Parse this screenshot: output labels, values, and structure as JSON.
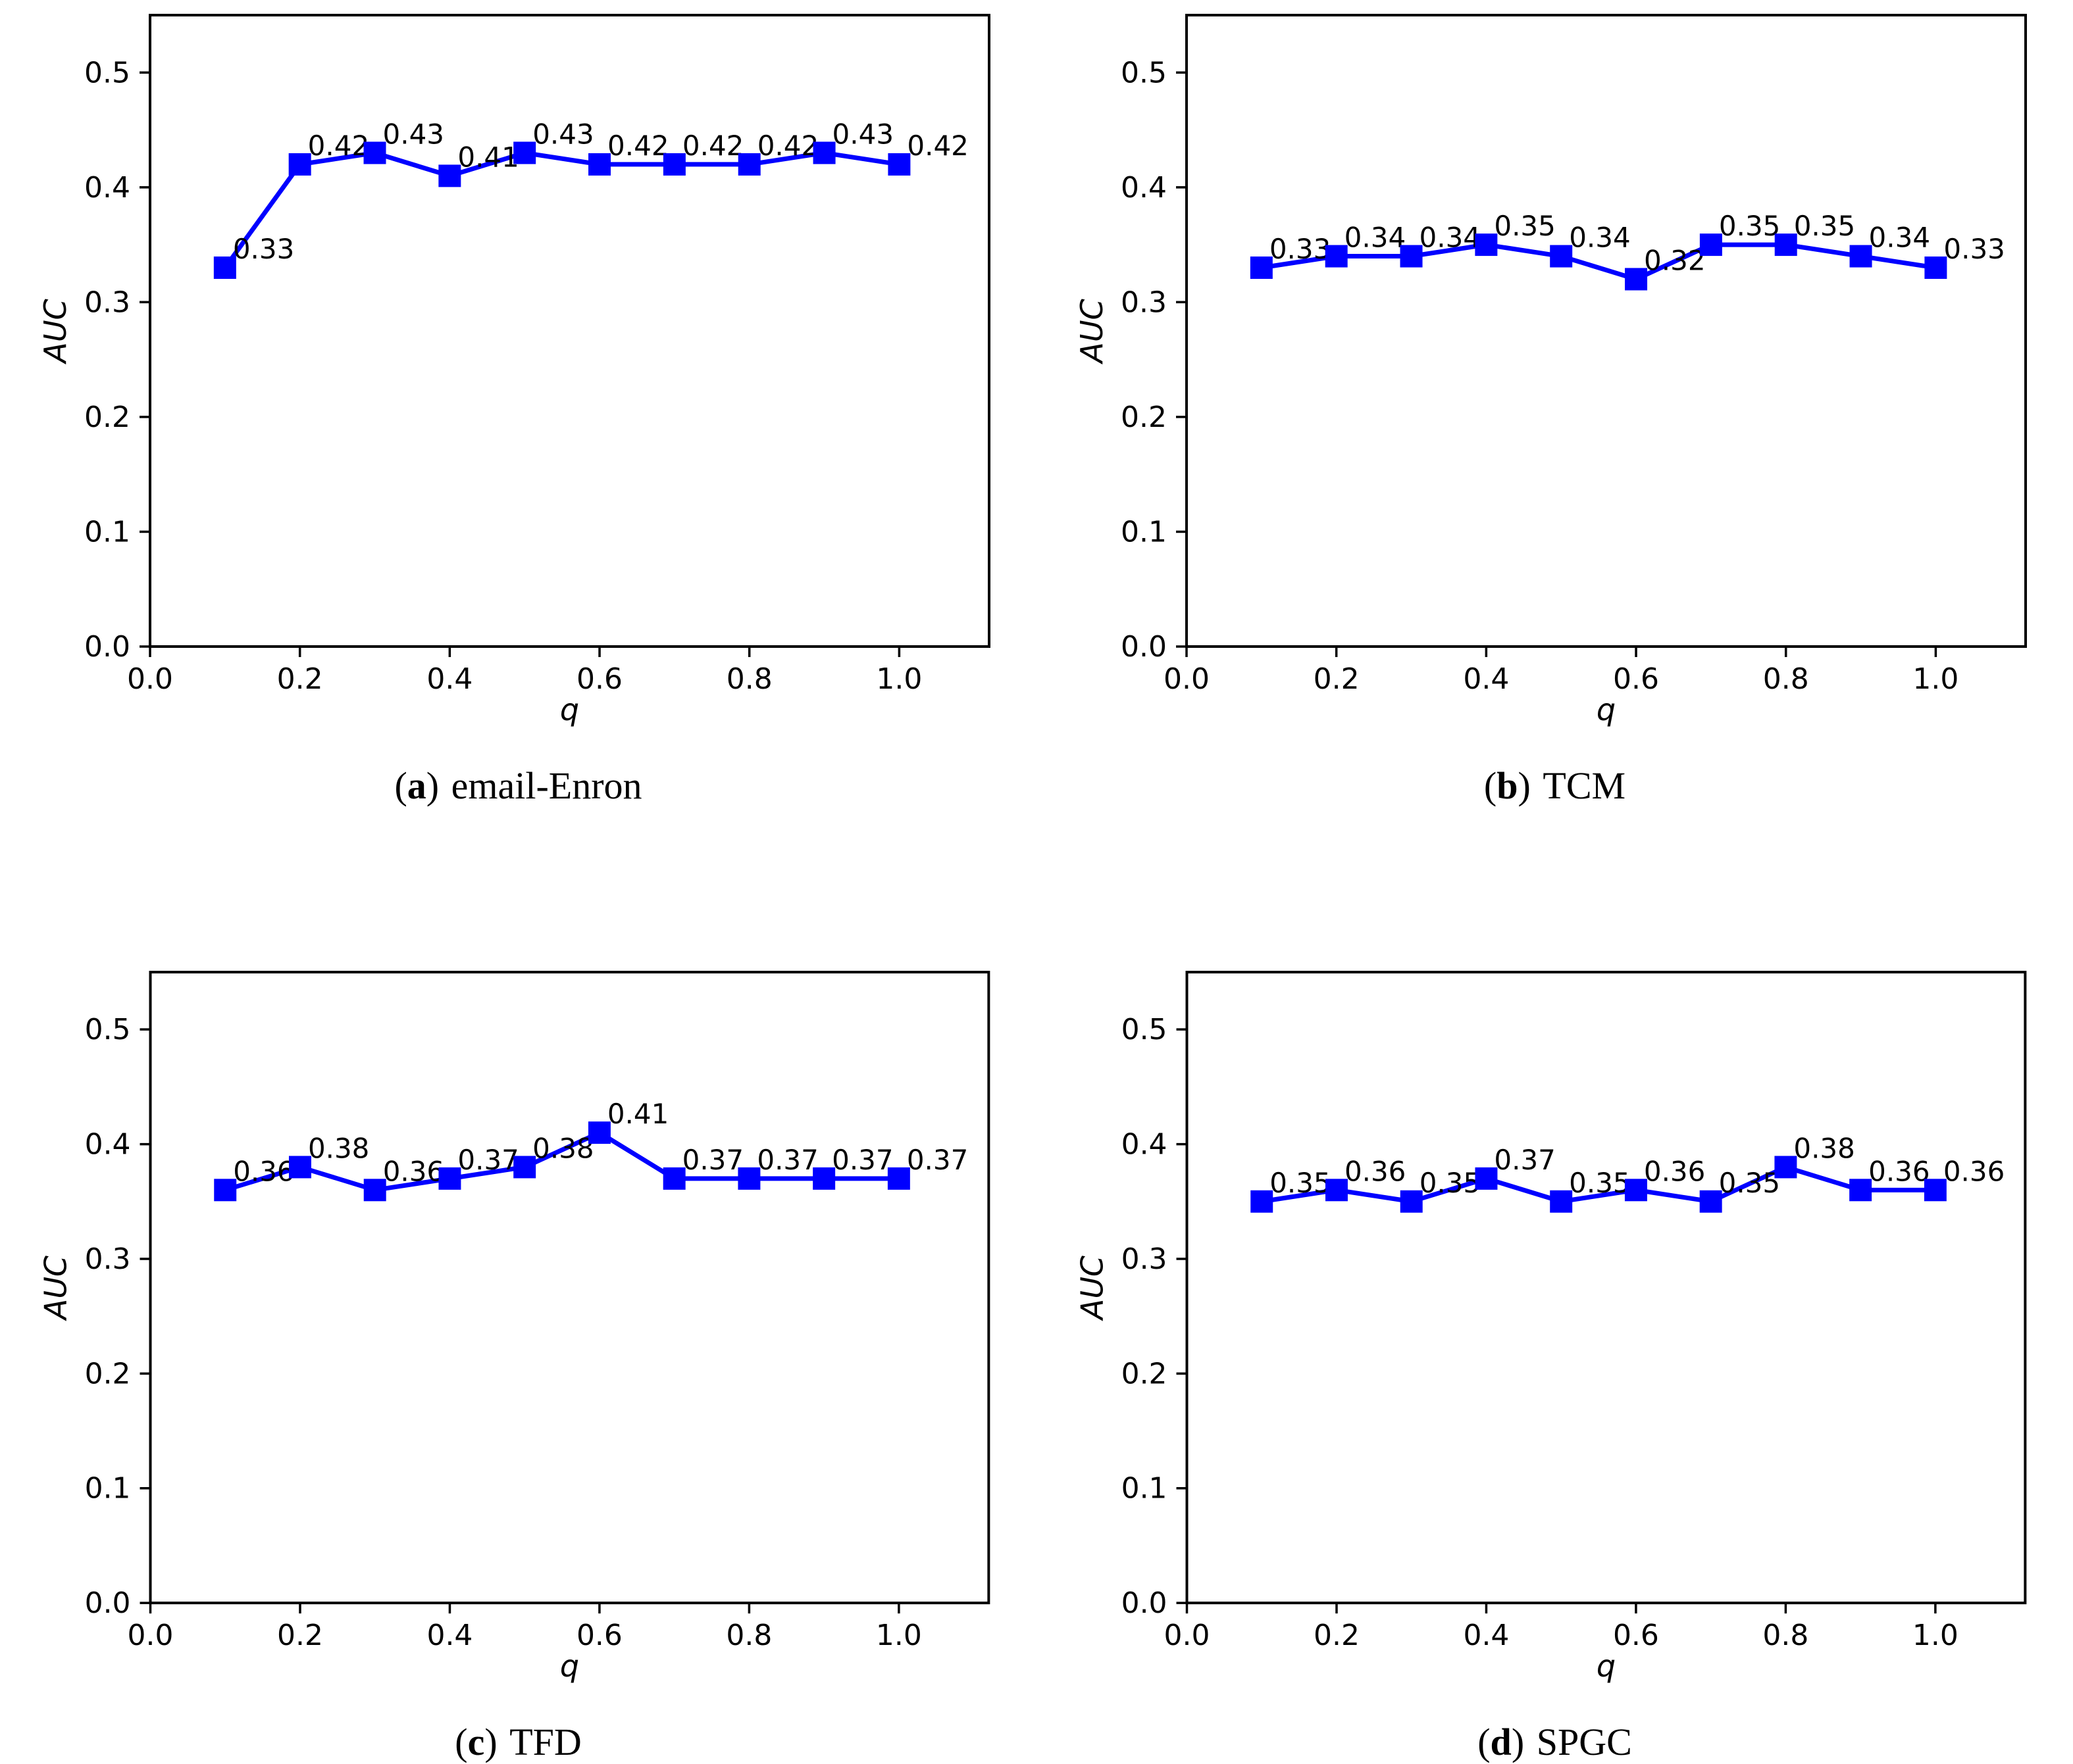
{
  "page": {
    "background": "#ffffff",
    "caption_prefix": "(",
    "caption_suffix": ")"
  },
  "chart_data": [
    {
      "type": "line",
      "caption": {
        "prefix": "(",
        "letter": "a",
        "suffix": ")",
        "label": "email-Enron"
      },
      "xlabel": "q",
      "ylabel": "AUC",
      "x": [
        0.1,
        0.2,
        0.3,
        0.4,
        0.5,
        0.6,
        0.7,
        0.8,
        0.9,
        1.0
      ],
      "values": [
        0.33,
        0.42,
        0.43,
        0.41,
        0.43,
        0.42,
        0.42,
        0.42,
        0.43,
        0.42
      ],
      "point_labels": [
        "0.33",
        "0.42",
        "0.43",
        "0.41",
        "0.43",
        "0.42",
        "0.42",
        "0.42",
        "0.43",
        "0.42"
      ],
      "xticks": [
        0.0,
        0.2,
        0.4,
        0.6,
        0.8,
        1.0
      ],
      "xtick_labels": [
        "0.0",
        "0.2",
        "0.4",
        "0.6",
        "0.8",
        "1.0"
      ],
      "yticks": [
        0.0,
        0.1,
        0.2,
        0.3,
        0.4,
        0.5
      ],
      "ytick_labels": [
        "0.0",
        "0.1",
        "0.2",
        "0.3",
        "0.4",
        "0.5"
      ],
      "xlim": [
        0,
        1.12
      ],
      "ylim": [
        0,
        0.55
      ],
      "grid": false,
      "legend": null,
      "line_color": "#0000ff",
      "marker": "square"
    },
    {
      "type": "line",
      "caption": {
        "prefix": "(",
        "letter": "b",
        "suffix": ")",
        "label": "TCM"
      },
      "xlabel": "q",
      "ylabel": "AUC",
      "x": [
        0.1,
        0.2,
        0.3,
        0.4,
        0.5,
        0.6,
        0.7,
        0.8,
        0.9,
        1.0
      ],
      "values": [
        0.33,
        0.34,
        0.34,
        0.35,
        0.34,
        0.32,
        0.35,
        0.35,
        0.34,
        0.33
      ],
      "point_labels": [
        "0.33",
        "0.34",
        "0.34",
        "0.35",
        "0.34",
        "0.32",
        "0.35",
        "0.35",
        "0.34",
        "0.33"
      ],
      "xticks": [
        0.0,
        0.2,
        0.4,
        0.6,
        0.8,
        1.0
      ],
      "xtick_labels": [
        "0.0",
        "0.2",
        "0.4",
        "0.6",
        "0.8",
        "1.0"
      ],
      "yticks": [
        0.0,
        0.1,
        0.2,
        0.3,
        0.4,
        0.5
      ],
      "ytick_labels": [
        "0.0",
        "0.1",
        "0.2",
        "0.3",
        "0.4",
        "0.5"
      ],
      "xlim": [
        0,
        1.12
      ],
      "ylim": [
        0,
        0.55
      ],
      "grid": false,
      "legend": null,
      "line_color": "#0000ff",
      "marker": "square"
    },
    {
      "type": "line",
      "caption": {
        "prefix": "(",
        "letter": "c",
        "suffix": ")",
        "label": "TFD"
      },
      "xlabel": "q",
      "ylabel": "AUC",
      "x": [
        0.1,
        0.2,
        0.3,
        0.4,
        0.5,
        0.6,
        0.7,
        0.8,
        0.9,
        1.0
      ],
      "values": [
        0.36,
        0.38,
        0.36,
        0.37,
        0.38,
        0.41,
        0.37,
        0.37,
        0.37,
        0.37
      ],
      "point_labels": [
        "0.36",
        "0.38",
        "0.36",
        "0.37",
        "0.38",
        "0.41",
        "0.37",
        "0.37",
        "0.37",
        "0.37"
      ],
      "xticks": [
        0.0,
        0.2,
        0.4,
        0.6,
        0.8,
        1.0
      ],
      "xtick_labels": [
        "0.0",
        "0.2",
        "0.4",
        "0.6",
        "0.8",
        "1.0"
      ],
      "yticks": [
        0.0,
        0.1,
        0.2,
        0.3,
        0.4,
        0.5
      ],
      "ytick_labels": [
        "0.0",
        "0.1",
        "0.2",
        "0.3",
        "0.4",
        "0.5"
      ],
      "xlim": [
        0,
        1.12
      ],
      "ylim": [
        0,
        0.55
      ],
      "grid": false,
      "legend": null,
      "line_color": "#0000ff",
      "marker": "square"
    },
    {
      "type": "line",
      "caption": {
        "prefix": "(",
        "letter": "d",
        "suffix": ")",
        "label": "SPGC"
      },
      "xlabel": "q",
      "ylabel": "AUC",
      "x": [
        0.1,
        0.2,
        0.3,
        0.4,
        0.5,
        0.6,
        0.7,
        0.8,
        0.9,
        1.0
      ],
      "values": [
        0.35,
        0.36,
        0.35,
        0.37,
        0.35,
        0.36,
        0.35,
        0.38,
        0.36,
        0.36
      ],
      "point_labels": [
        "0.35",
        "0.36",
        "0.35",
        "0.37",
        "0.35",
        "0.36",
        "0.35",
        "0.38",
        "0.36",
        "0.36"
      ],
      "xticks": [
        0.0,
        0.2,
        0.4,
        0.6,
        0.8,
        1.0
      ],
      "xtick_labels": [
        "0.0",
        "0.2",
        "0.4",
        "0.6",
        "0.8",
        "1.0"
      ],
      "yticks": [
        0.0,
        0.1,
        0.2,
        0.3,
        0.4,
        0.5
      ],
      "ytick_labels": [
        "0.0",
        "0.1",
        "0.2",
        "0.3",
        "0.4",
        "0.5"
      ],
      "xlim": [
        0,
        1.12
      ],
      "ylim": [
        0,
        0.55
      ],
      "grid": false,
      "legend": null,
      "line_color": "#0000ff",
      "marker": "square"
    }
  ]
}
